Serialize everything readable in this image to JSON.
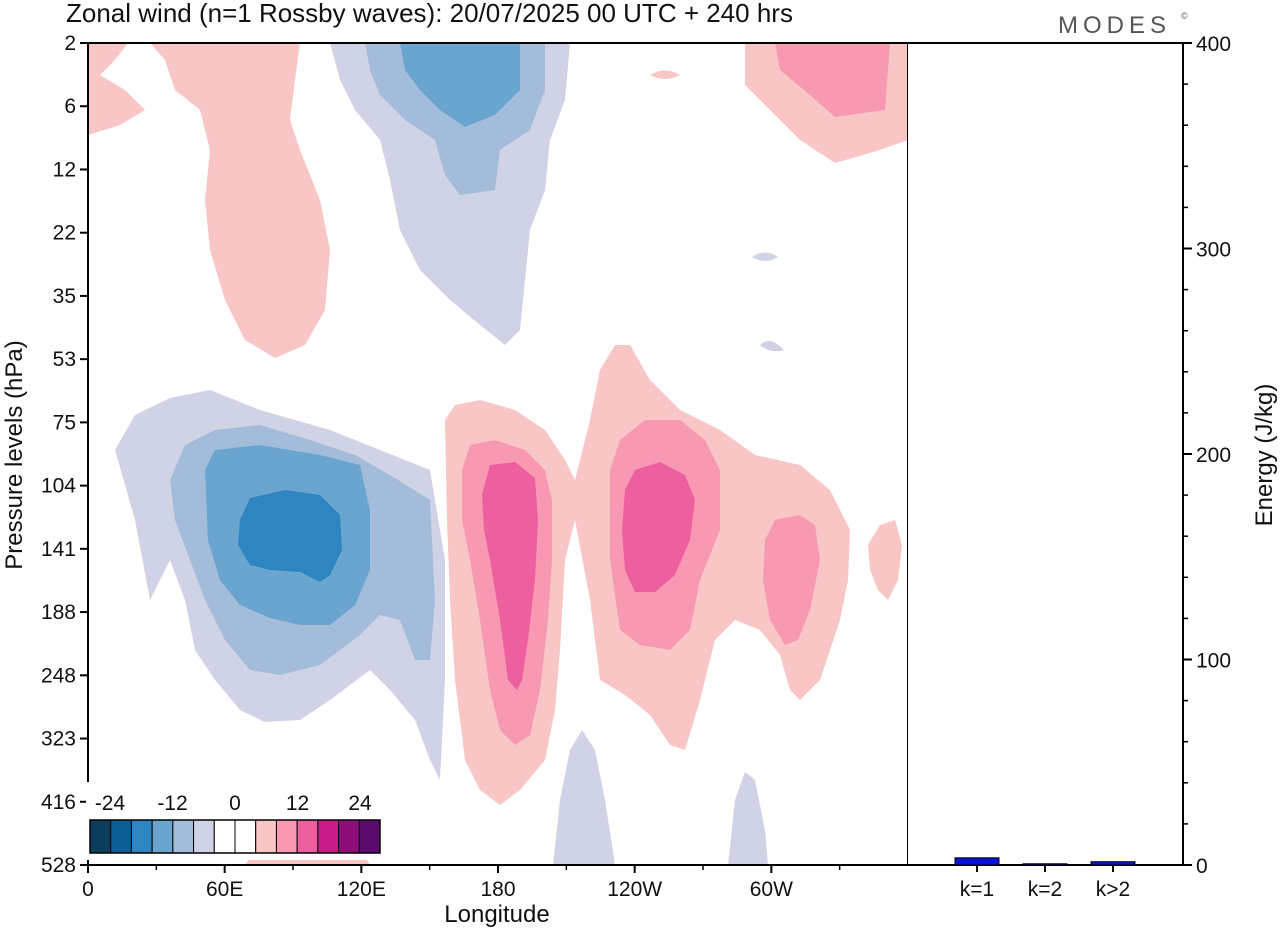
{
  "title": "Zonal wind (n=1 Rossby waves):  20/07/2025  00 UTC  + 240 hrs",
  "brand": "MODES",
  "brand_mark": "©",
  "chart_data": [
    {
      "type": "heatmap",
      "title": "Zonal wind (n=1 Rossby waves):  20/07/2025  00 UTC  + 240 hrs",
      "xlabel": "Longitude",
      "ylabel": "Pressure levels (hPa)",
      "x_tick_labels": [
        "0",
        "60E",
        "120E",
        "180",
        "120W",
        "60W"
      ],
      "x_tick_degrees": [
        0,
        60,
        120,
        180,
        240,
        300
      ],
      "xlim": [
        0,
        360
      ],
      "y_tick_labels": [
        "2",
        "6",
        "12",
        "22",
        "35",
        "53",
        "75",
        "104",
        "141",
        "188",
        "248",
        "323",
        "416",
        "528"
      ],
      "colorbar": {
        "tick_labels": [
          "-24",
          "-12",
          "0",
          "12",
          "24"
        ],
        "colors": [
          "#0d3d5c",
          "#0b5f94",
          "#2e85bf",
          "#6aa5d0",
          "#a3bcda",
          "#d0d3e6",
          "#ffffff",
          "#ffffff",
          "#f8c6c4",
          "#f799b2",
          "#ee5fa0",
          "#c81c8a",
          "#8e0f79",
          "#5a0a6d"
        ]
      },
      "features": [
        {
          "sign": "negative",
          "peak": -20,
          "lon": 88,
          "level": "141"
        },
        {
          "sign": "positive",
          "peak": 16,
          "lon": 185,
          "level": "141"
        },
        {
          "sign": "positive",
          "peak": 16,
          "lon": 238,
          "level": "141"
        },
        {
          "sign": "positive",
          "peak": 8,
          "lon": 310,
          "level": "141"
        },
        {
          "sign": "negative",
          "peak": -12,
          "lon": 165,
          "level": "6"
        },
        {
          "sign": "positive",
          "peak": 8,
          "lon": 320,
          "level": "6"
        },
        {
          "sign": "positive",
          "peak": 4,
          "lon": 75,
          "level": "22"
        }
      ]
    },
    {
      "type": "bar",
      "categories": [
        "k=1",
        "k=2",
        "k>2"
      ],
      "values": [
        3.5,
        0.6,
        1.6
      ],
      "ylabel": "Energy (J/kg)",
      "ylim": [
        0,
        400
      ],
      "y_tick_labels": [
        "0",
        "100",
        "200",
        "300",
        "400"
      ],
      "bar_color": "#0a12d6"
    }
  ]
}
